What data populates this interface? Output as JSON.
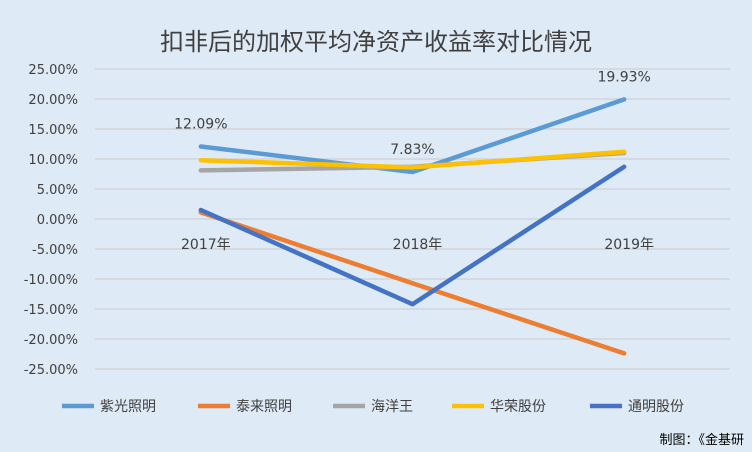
{
  "chart_data": {
    "type": "line",
    "title": "扣非后的加权平均净资产收益率对比情况",
    "categories": [
      "2017年",
      "2018年",
      "2019年"
    ],
    "ylim": [
      -25,
      25
    ],
    "yticks": [
      25,
      20,
      15,
      10,
      5,
      0,
      -5,
      -10,
      -15,
      -20,
      -25
    ],
    "ytick_labels": [
      "25.00%",
      "20.00%",
      "15.00%",
      "10.00%",
      "5.00%",
      "0.00%",
      "-5.00%",
      "-10.00%",
      "-15.00%",
      "-20.00%",
      "-25.00%"
    ],
    "grid": true,
    "legend": "bottom",
    "series": [
      {
        "name": "紫光照明",
        "color": "#5B9BD5",
        "values": [
          12.09,
          7.83,
          19.93
        ],
        "labels": [
          "12.09%",
          "7.83%",
          "19.93%"
        ]
      },
      {
        "name": "泰来照明",
        "color": "#ED7D31",
        "values": [
          1.1,
          -10.7,
          -22.4
        ]
      },
      {
        "name": "海洋王",
        "color": "#A5A5A5",
        "values": [
          8.1,
          8.7,
          11.0
        ]
      },
      {
        "name": "华荣股份",
        "color": "#FFC000",
        "values": [
          9.8,
          8.6,
          11.2
        ]
      },
      {
        "name": "通明股份",
        "color": "#4472C4",
        "values": [
          1.5,
          -14.2,
          8.7
        ]
      }
    ]
  },
  "source": "制图：《金基研"
}
